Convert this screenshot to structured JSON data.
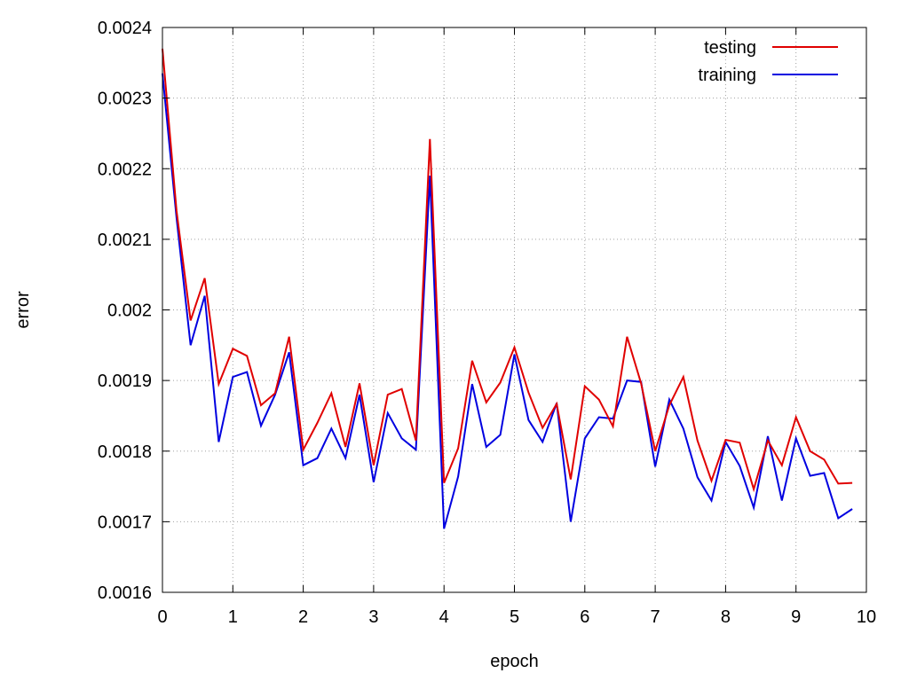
{
  "chart_data": {
    "type": "line",
    "xlabel": "epoch",
    "ylabel": "error",
    "xlim": [
      0,
      10
    ],
    "ylim": [
      0.0016,
      0.0024
    ],
    "xticks": [
      "0",
      "1",
      "2",
      "3",
      "4",
      "5",
      "6",
      "7",
      "8",
      "9",
      "10"
    ],
    "yticks": [
      "0.0016",
      "0.0017",
      "0.0018",
      "0.0019",
      "0.002",
      "0.0021",
      "0.0022",
      "0.0023",
      "0.0024"
    ],
    "grid": true,
    "legend_position": "top-right",
    "x": [
      0,
      0.2,
      0.4,
      0.6,
      0.8,
      1.0,
      1.2,
      1.4,
      1.6,
      1.8,
      2.0,
      2.2,
      2.4,
      2.6,
      2.8,
      3.0,
      3.2,
      3.4,
      3.6,
      3.8,
      4.0,
      4.2,
      4.4,
      4.6,
      4.8,
      5.0,
      5.2,
      5.4,
      5.6,
      5.8,
      6.0,
      6.2,
      6.4,
      6.6,
      6.8,
      7.0,
      7.2,
      7.4,
      7.6,
      7.8,
      8.0,
      8.2,
      8.4,
      8.6,
      8.8,
      9.0,
      9.2,
      9.4,
      9.6,
      9.8
    ],
    "series": [
      {
        "name": "testing",
        "color": "#e00000",
        "values": [
          0.00237,
          0.00214,
          0.001985,
          0.002045,
          0.001895,
          0.001945,
          0.001935,
          0.001865,
          0.001882,
          0.001962,
          0.001802,
          0.00184,
          0.001882,
          0.001806,
          0.001896,
          0.00178,
          0.00188,
          0.001888,
          0.001815,
          0.002242,
          0.001755,
          0.001804,
          0.001928,
          0.001869,
          0.001897,
          0.001947,
          0.001883,
          0.001833,
          0.001867,
          0.00176,
          0.001892,
          0.001873,
          0.001835,
          0.001962,
          0.001896,
          0.0018,
          0.001865,
          0.001905,
          0.001815,
          0.001758,
          0.001816,
          0.001812,
          0.001746,
          0.001815,
          0.00178,
          0.001848,
          0.0018,
          0.001788,
          0.001754,
          0.001755
        ]
      },
      {
        "name": "training",
        "color": "#0000e0",
        "values": [
          0.002335,
          0.00213,
          0.00195,
          0.00202,
          0.001813,
          0.001905,
          0.001912,
          0.001836,
          0.00188,
          0.00194,
          0.00178,
          0.00179,
          0.001832,
          0.00179,
          0.00188,
          0.001756,
          0.001854,
          0.001818,
          0.001802,
          0.00219,
          0.00169,
          0.001764,
          0.001895,
          0.001806,
          0.001823,
          0.001937,
          0.001844,
          0.001813,
          0.001868,
          0.0017,
          0.001818,
          0.001848,
          0.001846,
          0.0019,
          0.001898,
          0.001778,
          0.001873,
          0.001832,
          0.001763,
          0.00173,
          0.001813,
          0.001779,
          0.00172,
          0.001821,
          0.00173,
          0.001818,
          0.001765,
          0.001769,
          0.001705,
          0.001718
        ]
      }
    ]
  }
}
